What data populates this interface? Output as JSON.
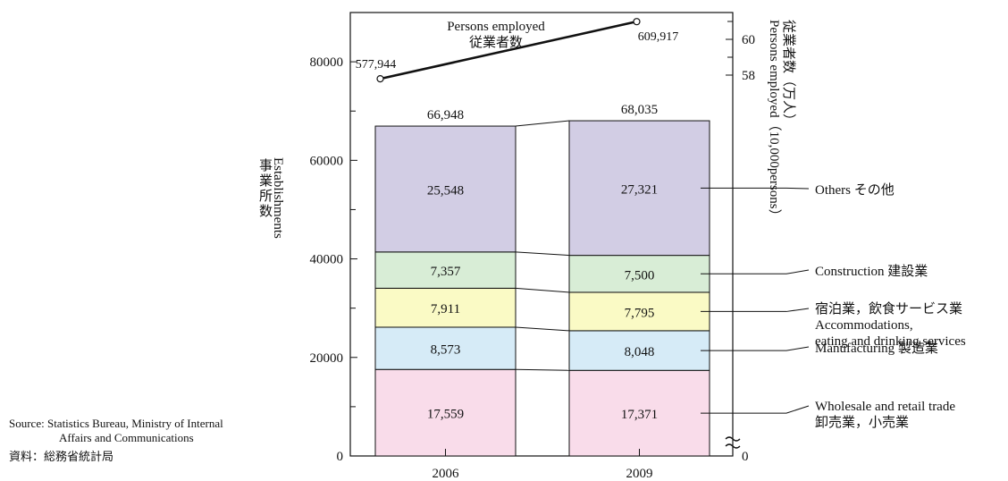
{
  "chart_data": {
    "type": "bar",
    "stacked": true,
    "categories": [
      "2006",
      "2009"
    ],
    "totals": [
      "66,948",
      "68,035"
    ],
    "totals_values": [
      66948,
      68035
    ],
    "ylim": [
      0,
      90000
    ],
    "yticks": [
      "0",
      "20000",
      "40000",
      "60000",
      "80000"
    ],
    "ylabel_en": "Establishments",
    "ylabel_ja": "事業所数",
    "y2label_ja": "従業者数（万人）",
    "y2label_en": "Persons employed（10,000persons）",
    "y2ticks": [
      "60",
      "58",
      "0"
    ],
    "series": [
      {
        "name_en": "Wholesale and retail trade",
        "name_ja": "卸売業，小売業",
        "values": [
          17559,
          17371
        ],
        "labels": [
          "17,559",
          "17,371"
        ],
        "color": "#f9dcea"
      },
      {
        "name_en": "Manufacturing",
        "name_ja": "製造業",
        "values": [
          8573,
          8048
        ],
        "labels": [
          "8,573",
          "8,048"
        ],
        "color": "#d6ebf7"
      },
      {
        "name_en": "Accommodations,",
        "name_en2": "eating and drinking services",
        "name_ja": "宿泊業，飲食サービス業",
        "values": [
          7911,
          7795
        ],
        "labels": [
          "7,911",
          "7,795"
        ],
        "color": "#fafac5"
      },
      {
        "name_en": "Construction",
        "name_ja": "建設業",
        "values": [
          7357,
          7500
        ],
        "labels": [
          "7,357",
          "7,500"
        ],
        "color": "#d8edd6"
      },
      {
        "name_en": "Others",
        "name_ja": "その他",
        "values": [
          25548,
          27321
        ],
        "labels": [
          "25,548",
          "27,321"
        ],
        "color": "#d2cde4"
      }
    ],
    "persons_employed": {
      "name_en": "Persons employed",
      "name_ja": "従業者数",
      "values": [
        577944,
        609917
      ],
      "labels": [
        "577,944",
        "609,917"
      ]
    }
  },
  "source": {
    "line1": "Source: Statistics Bureau, Ministry of Internal",
    "line2": "Affairs and Communications",
    "line3": "資料：総務省統計局"
  }
}
